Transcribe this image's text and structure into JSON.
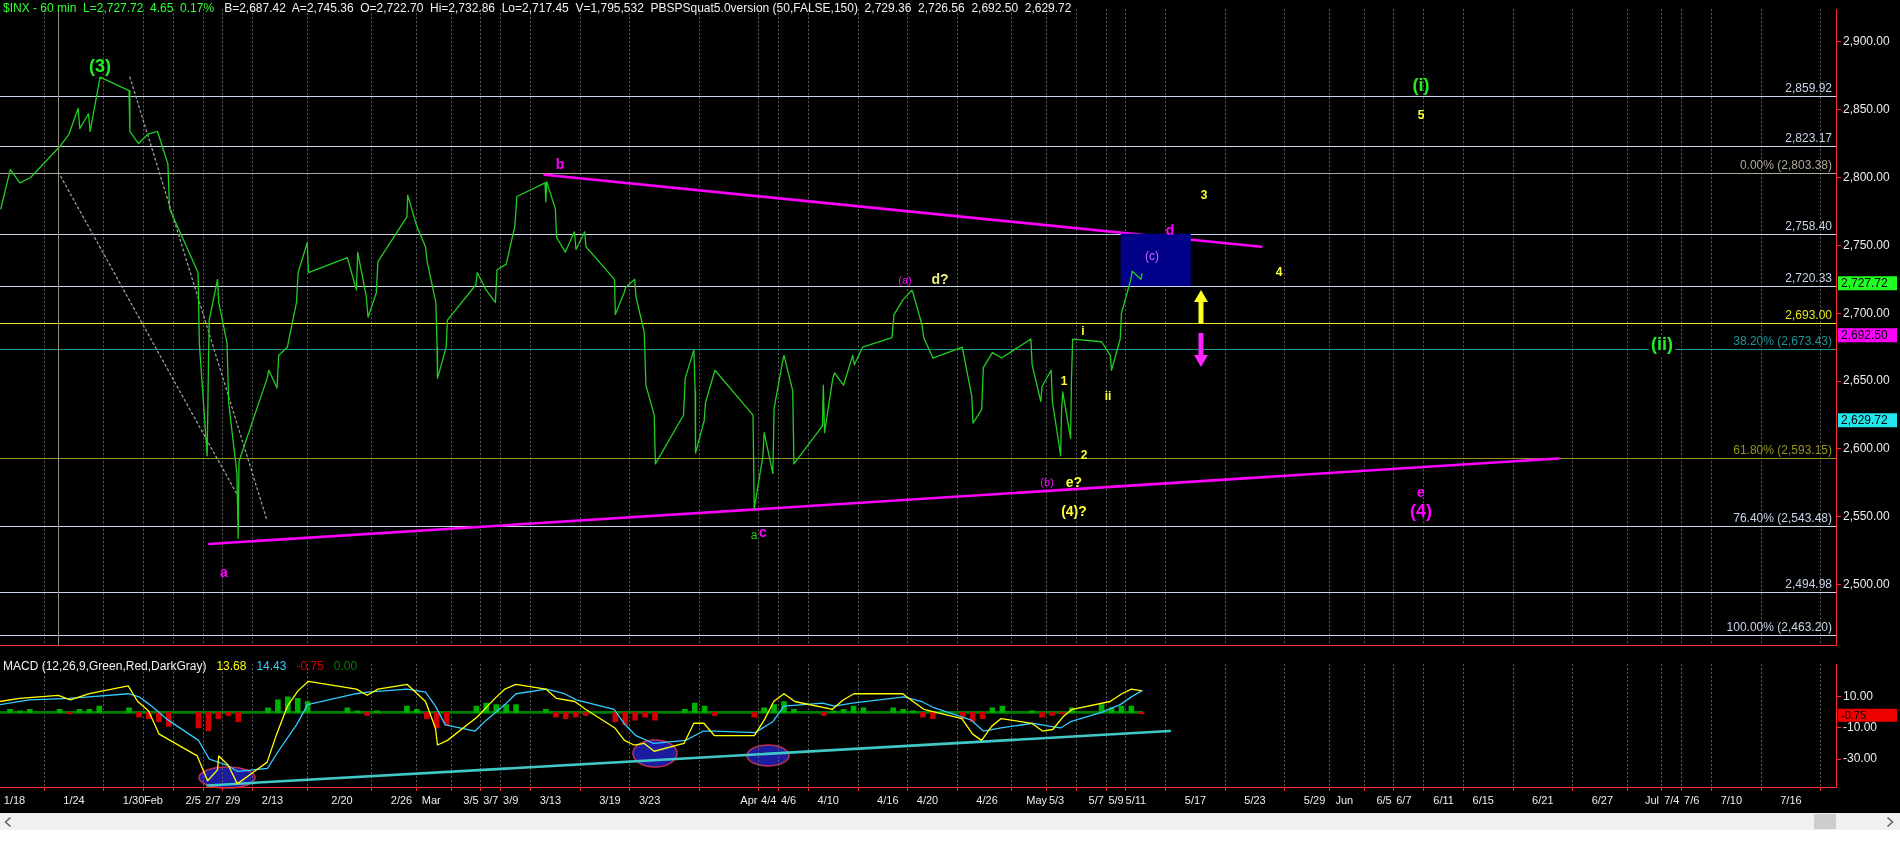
{
  "chart_data": [
    {
      "type": "line",
      "title": "$INX - 60 min  L=2,727.72  4.65  0.17%",
      "subtitle": "B=2,687.42  A=2,745.36  O=2,722.70  Hi=2,732.86  Lo=2,717.45  V=1,795,532  PBSPSquat5.0version (50,FALSE,150)  2,729.36  2,726.56  2,692.50  2,629.72",
      "xlim": [
        "--01-16T13:00",
        "--07-20T13:00"
      ],
      "xticks": [
        {
          "value": "--01-18",
          "label": null
        },
        {
          "value": "--01-24",
          "label": null
        },
        {
          "value": "--01-30",
          "label": null
        },
        {
          "value": "--02-01",
          "label": null
        },
        {
          "value": "--02-05",
          "label": null
        },
        {
          "value": "--02-07",
          "label": null
        },
        {
          "value": "--02-09",
          "label": null
        },
        {
          "value": "--02-13",
          "label": null
        },
        {
          "value": "--02-20",
          "label": null
        },
        {
          "value": "--02-26",
          "label": null
        },
        {
          "value": "--03-01",
          "label": null
        },
        {
          "value": "--03-05",
          "label": null
        },
        {
          "value": "--03-07",
          "label": null
        },
        {
          "value": "--03-09",
          "label": null
        },
        {
          "value": "--03-13",
          "label": null
        },
        {
          "value": "--03-19",
          "label": null
        },
        {
          "value": "--03-23",
          "label": null
        },
        {
          "value": "--04-02",
          "label": null
        },
        {
          "value": "--04-04",
          "label": null
        },
        {
          "value": "--04-06",
          "label": null
        },
        {
          "value": "--04-10",
          "label": null
        },
        {
          "value": "--04-16",
          "label": null
        },
        {
          "value": "--04-20",
          "label": null
        },
        {
          "value": "--04-26",
          "label": null
        },
        {
          "value": "--05-01",
          "label": null
        },
        {
          "value": "--05-03",
          "label": null
        },
        {
          "value": "--05-07",
          "label": null
        },
        {
          "value": "--05-09",
          "label": null
        },
        {
          "value": "--05-11",
          "label": null
        },
        {
          "value": "--05-17",
          "label": null
        },
        {
          "value": "--05-23",
          "label": null
        },
        {
          "value": "--05-29",
          "label": null
        },
        {
          "value": "--06-01",
          "label": null
        },
        {
          "value": "--06-05",
          "label": null
        },
        {
          "value": "--06-07",
          "label": null
        },
        {
          "value": "--06-11",
          "label": null
        },
        {
          "value": "--06-15",
          "label": null
        },
        {
          "value": "--06-21",
          "label": null
        },
        {
          "value": "--06-27",
          "label": null
        },
        {
          "value": "--07-02",
          "label": null
        },
        {
          "value": "--07-04",
          "label": null
        },
        {
          "value": "--07-06",
          "label": null
        },
        {
          "value": "--07-10",
          "label": null
        },
        {
          "value": "--07-16",
          "label": null
        }
      ],
      "ylim": [
        2455,
        2924
      ],
      "yticks": [
        {
          "value": 2500,
          "label": "2,500.00"
        },
        {
          "value": 2550,
          "label": "2,550.00"
        },
        {
          "value": 2600,
          "label": "2,600.00"
        },
        {
          "value": 2650,
          "label": "2,650.00"
        },
        {
          "value": 2700,
          "label": "2,700.00"
        },
        {
          "value": 2750,
          "label": "2,750.00"
        },
        {
          "value": 2800,
          "label": "2,800.00"
        },
        {
          "value": 2850,
          "label": "2,850.00"
        },
        {
          "value": 2900,
          "label": "2,900.00"
        }
      ],
      "tick_labels": "y",
      "grid": "x",
      "marker": "none",
      "series": [
        {
          "color": "#22cc22",
          "x": [
            "--01-16T15:00",
            "--01-17T14:00",
            "--01-18T13:00",
            "--01-19T15:00",
            "--01-22T14:00",
            "--01-23T12:00",
            "--01-24T10:00",
            "--01-24T14:00",
            "--01-25T11:00",
            "--01-25T15:00",
            "--01-26T15:00",
            "--01-29T13:00",
            "--01-29T15:00",
            "--01-30T12:00",
            "--01-31T11:00",
            "--02-01T10:00",
            "--02-01T14:00",
            "--02-02T11:00",
            "--02-02T15:00",
            "--02-05T12:00",
            "--02-05T15:00",
            "--02-06T10:00",
            "--02-06T13:00",
            "--02-06T15:00",
            "--02-07T11:00",
            "--02-07T14:00",
            "--02-08T10:00",
            "--02-08T14:00",
            "--02-09T10:00",
            "--02-09T13:00",
            "--02-09T15:00",
            "--02-12T11:00",
            "--02-12T15:00",
            "--02-13T11:00",
            "--02-13T15:00",
            "--02-14T12:00",
            "--02-15T10:00",
            "--02-15T14:00",
            "--02-16T12:00",
            "--02-16T15:00",
            "--02-20T13:00",
            "--02-21T11:00",
            "--02-21T14:00",
            "--02-22T11:00",
            "--02-22T15:00",
            "--02-23T11:00",
            "--02-23T15:00",
            "--02-26T13:00",
            "--02-26T15:00",
            "--02-27T13:00",
            "--02-28T10:00",
            "--02-28T14:00",
            "--03-01T11:00",
            "--03-01T14:00",
            "--03-01T15:00",
            "--03-02T12:00",
            "--03-02T15:00",
            "--03-05T12:00",
            "--03-05T15:00",
            "--03-06T13:00",
            "--03-07T11:00",
            "--03-07T15:00",
            "--03-08T13:00",
            "--03-09T10:00",
            "--03-09T15:00",
            "--03-12T11:00",
            "--03-12T13:00",
            "--03-12T15:00",
            "--03-13T12:00",
            "--03-13T15:00",
            "--03-14T12:00",
            "--03-15T10:00",
            "--03-15T14:00",
            "--03-16T11:00",
            "--03-16T14:00",
            "--03-19T11:00",
            "--03-19T13:00",
            "--03-20T10:00",
            "--03-20T14:00",
            "--03-21T12:00",
            "--03-21T15:00",
            "--03-22T11:00",
            "--03-22T15:00",
            "--03-23T11:00",
            "--03-23T14:00",
            "--03-26T10:00",
            "--03-26T14:00",
            "--03-27T11:00",
            "--03-27T14:00",
            "--03-27T15:00",
            "--03-28T12:00",
            "--03-28T15:00",
            "--03-29T14:00",
            "--04-02T10:00",
            "--04-02T13:00",
            "--04-03T10:00",
            "--04-03T13:00",
            "--04-04T10:00",
            "--04-04T13:00",
            "--04-05T10:00",
            "--04-05T13:00",
            "--04-06T10:00",
            "--04-06T13:00",
            "--04-09T10:00",
            "--04-09T12:00",
            "--04-09T15:00",
            "--04-10T11:00",
            "--04-10T15:00",
            "--04-11T13:00",
            "--04-12T11:00",
            "--04-12T15:00",
            "--04-13T11:00",
            "--04-16T10:00",
            "--04-16T15:00",
            "--04-17T13:00",
            "--04-18T10:00",
            "--04-18T13:00",
            "--04-19T11:00",
            "--04-19T15:00",
            "--04-20T13:00",
            "--04-23T12:00",
            "--04-24T11:00",
            "--04-24T14:00",
            "--04-25T11:00",
            "--04-25T15:00",
            "--04-26T13:00",
            "--04-27T11:00",
            "--04-30T10:00",
            "--04-30T13:00",
            "--05-01T10:00",
            "--05-01T13:00",
            "--05-02T11:00",
            "--05-02T14:00",
            "--05-03T10:00",
            "--05-03T12:00",
            "--05-03T15:00",
            "--05-04T10:00",
            "--05-04T12:00",
            "--05-04T15:00",
            "--05-07T13:00",
            "--05-08T10:00",
            "--05-08T13:00",
            "--05-09T10:00",
            "--05-09T13:00",
            "--05-10T10:00",
            "--05-10T13:00",
            "--05-10T15:00",
            "--05-11T12:00",
            "--05-11T15:00"
          ],
          "values": [
            2777,
            2806,
            2796,
            2800,
            2823,
            2832,
            2851,
            2836,
            2847,
            2834,
            2874,
            2864,
            2834,
            2825,
            2832,
            2834,
            2830,
            2810,
            2777,
            2730,
            2678,
            2595,
            2660,
            2695,
            2725,
            2708,
            2678,
            2634,
            2582,
            2534,
            2591,
            2652,
            2658,
            2645,
            2669,
            2675,
            2708,
            2730,
            2752,
            2730,
            2741,
            2717,
            2745,
            2712,
            2697,
            2715,
            2738,
            2771,
            2787,
            2764,
            2749,
            2738,
            2708,
            2675,
            2652,
            2675,
            2695,
            2721,
            2730,
            2717,
            2708,
            2732,
            2736,
            2764,
            2786,
            2796,
            2782,
            2797,
            2777,
            2756,
            2745,
            2760,
            2747,
            2760,
            2749,
            2725,
            2699,
            2715,
            2719,
            2725,
            2712,
            2686,
            2647,
            2625,
            2589,
            2625,
            2652,
            2673,
            2643,
            2597,
            2621,
            2634,
            2658,
            2625,
            2556,
            2595,
            2612,
            2582,
            2630,
            2665,
            2669,
            2643,
            2589,
            2617,
            2647,
            2612,
            2652,
            2656,
            2647,
            2669,
            2662,
            2675,
            2682,
            2699,
            2710,
            2717,
            2715,
            2691,
            2682,
            2667,
            2675,
            2639,
            2619,
            2629,
            2660,
            2671,
            2667,
            2681,
            2662,
            2635,
            2646,
            2658,
            2635,
            2595,
            2627,
            2642,
            2608,
            2650,
            2681,
            2679,
            2669,
            2658,
            2681,
            2700,
            2723,
            2727,
            2731,
            2725,
            2729
          ]
        },
        {
          "type": "bar",
          "color": "#000088",
          "x": [
            "--05-13T00:00"
          ],
          "base": [
            2720.33
          ],
          "values": [
            38.07
          ]
        },
        {
          "color": "#ff00ff",
          "x": [
            "--03-12T10:00",
            "--05-23T15:00"
          ],
          "values": [
            2802,
            2749
          ]
        },
        {
          "color": "#ff00ff",
          "x": [
            "--02-06T15:00",
            "--06-22T14:00"
          ],
          "values": [
            2530,
            2593
          ]
        },
        {
          "color": "#9a9a9a",
          "line_style": "dotted",
          "x": [
            "--01-22T10:00",
            "--02-09T13:00"
          ],
          "values": [
            2804,
            2565
          ]
        },
        {
          "color": "#9a9a9a",
          "line_style": "dotted",
          "x": [
            "--01-29T15:00",
            "--02-12T11:00"
          ],
          "values": [
            2874,
            2547
          ]
        }
      ],
      "ref_lines": [
        {
          "axis": "y",
          "value": 2859.92,
          "label": "2,859.92",
          "color": "#c8d4e8"
        },
        {
          "axis": "y",
          "value": 2823.17,
          "label": "2,823.17",
          "color": "#c8d4e8"
        },
        {
          "axis": "y",
          "value": 2803.38,
          "label": "0.00% (2,803.38)",
          "color": "#b0a898"
        },
        {
          "axis": "y",
          "value": 2758.4,
          "label": "2,758.40",
          "color": "#c8d4e8"
        },
        {
          "axis": "y",
          "value": 2720.33,
          "label": "2,720.33",
          "color": "#c8d4e8"
        },
        {
          "axis": "y",
          "value": 2693,
          "label": "2,693.00",
          "color": "#e6e620"
        },
        {
          "axis": "y",
          "value": 2673.43,
          "label": "38.20% (2,673.43)",
          "color": "#1f9494"
        },
        {
          "axis": "y",
          "value": 2593.15,
          "label": "61.80% (2,593.15)",
          "color": "#94941f"
        },
        {
          "axis": "y",
          "value": 2543.48,
          "label": "76.40% (2,543.48)",
          "color": "#c8d4e8"
        },
        {
          "axis": "y",
          "value": 2494.98,
          "label": "2,494.98",
          "color": "#c8d4e8"
        },
        {
          "axis": "y",
          "value": 2463.2,
          "label": "100.00% (2,463.20)",
          "color": "#c8d4e8"
        },
        {
          "axis": "x",
          "value": "--01-22T10:00",
          "color": "#968a78"
        }
      ],
      "annotations": [
        "(3)",
        "a",
        "b",
        "a",
        "c",
        "(a)",
        "d?",
        "(b)",
        "e?",
        "(4)?",
        "1",
        "2",
        "i",
        "ii",
        "(c)",
        "d",
        "3",
        "4",
        "(i)",
        "5",
        "e",
        "(4)",
        "(ii)",
        "2,727.72",
        "2,692.50",
        "2,629.72"
      ]
    },
    {
      "type": "line",
      "title": "MACD (12,26,9,Green,Red,DarkGray)",
      "legend": "top left",
      "xlim": [
        "--01-16T13:00",
        "--07-20T13:00"
      ],
      "xticks": [
        {
          "value": "--01-18",
          "label": "1/18"
        },
        {
          "value": "--01-24",
          "label": "1/24"
        },
        {
          "value": "--01-30",
          "label": "1/30"
        },
        {
          "value": "--02-01",
          "label": "Feb"
        },
        {
          "value": "--02-05",
          "label": "2/5"
        },
        {
          "value": "--02-07",
          "label": "2/7"
        },
        {
          "value": "--02-09",
          "label": "2/9"
        },
        {
          "value": "--02-13",
          "label": "2/13"
        },
        {
          "value": "--02-20",
          "label": "2/20"
        },
        {
          "value": "--02-26",
          "label": "2/26"
        },
        {
          "value": "--03-01",
          "label": "Mar"
        },
        {
          "value": "--03-05",
          "label": "3/5"
        },
        {
          "value": "--03-07",
          "label": "3/7"
        },
        {
          "value": "--03-09",
          "label": "3/9"
        },
        {
          "value": "--03-13",
          "label": "3/13"
        },
        {
          "value": "--03-19",
          "label": "3/19"
        },
        {
          "value": "--03-23",
          "label": "3/23"
        },
        {
          "value": "--04-02",
          "label": "Apr"
        },
        {
          "value": "--04-04",
          "label": "4/4"
        },
        {
          "value": "--04-06",
          "label": "4/6"
        },
        {
          "value": "--04-10",
          "label": "4/10"
        },
        {
          "value": "--04-16",
          "label": "4/16"
        },
        {
          "value": "--04-20",
          "label": "4/20"
        },
        {
          "value": "--04-26",
          "label": "4/26"
        },
        {
          "value": "--05-01",
          "label": "May"
        },
        {
          "value": "--05-03",
          "label": "5/3"
        },
        {
          "value": "--05-07",
          "label": "5/7"
        },
        {
          "value": "--05-09",
          "label": "5/9"
        },
        {
          "value": "--05-11",
          "label": "5/11"
        },
        {
          "value": "--05-17",
          "label": "5/17"
        },
        {
          "value": "--05-23",
          "label": "5/23"
        },
        {
          "value": "--05-29",
          "label": "5/29"
        },
        {
          "value": "--06-01",
          "label": "Jun"
        },
        {
          "value": "--06-05",
          "label": "6/5"
        },
        {
          "value": "--06-07",
          "label": "6/7"
        },
        {
          "value": "--06-11",
          "label": "6/11"
        },
        {
          "value": "--06-15",
          "label": "6/15"
        },
        {
          "value": "--06-21",
          "label": "6/21"
        },
        {
          "value": "--06-27",
          "label": "6/27"
        },
        {
          "value": "--07-02",
          "label": "Jul"
        },
        {
          "value": "--07-04",
          "label": "7/4"
        },
        {
          "value": "--07-06",
          "label": "7/6"
        },
        {
          "value": "--07-10",
          "label": "7/10"
        },
        {
          "value": "--07-16",
          "label": "7/16"
        }
      ],
      "ylim": [
        -48,
        31
      ],
      "yticks": [
        {
          "value": 10,
          "label": "10.00"
        },
        {
          "value": -10,
          "label": "-10.00"
        },
        {
          "value": -30,
          "label": "-30.00"
        }
      ],
      "grid": "x",
      "marker": "none",
      "series": [
        {
          "name": "13.68",
          "color": "#ffff00",
          "x": [
            "--01-16T13:00",
            "--01-18T12:00",
            "--01-22T10:00",
            "--01-23T15:00",
            "--01-25T13:00",
            "--01-29T11:00",
            "--01-30T10:00",
            "--01-31T12:00",
            "--02-01T14:00",
            "--02-05T10:00",
            "--02-06T11:00",
            "--02-07T11:00",
            "--02-07T14:00",
            "--02-08T13:00",
            "--02-09T11:00",
            "--02-12T11:00",
            "--02-13T10:00",
            "--02-14T12:00",
            "--02-15T14:00",
            "--02-16T15:00",
            "--02-21T11:00",
            "--02-22T13:00",
            "--02-23T15:00",
            "--02-26T14:00",
            "--02-28T10:00",
            "--03-01T10:00",
            "--03-01T15:00",
            "--03-02T15:00",
            "--03-05T15:00",
            "--03-07T10:00",
            "--03-08T10:00",
            "--03-09T12:00",
            "--03-12T13:00",
            "--03-13T15:00",
            "--03-15T11:00",
            "--03-16T13:00",
            "--03-19T12:00",
            "--03-20T11:00",
            "--03-21T10:00",
            "--03-22T11:00",
            "--03-23T11:00",
            "--03-26T11:00",
            "--03-27T11:00",
            "--03-28T11:00",
            "--03-29T13:00",
            "--04-02T13:00",
            "--04-03T13:00",
            "--04-04T12:00",
            "--04-05T13:00",
            "--04-06T15:00",
            "--04-10T10:00",
            "--04-11T12:00",
            "--04-12T14:00",
            "--04-16T10:00",
            "--04-17T12:00",
            "--04-18T13:00",
            "--04-19T15:00",
            "--04-23T11:00",
            "--04-24T13:00",
            "--04-25T11:00",
            "--04-26T11:00",
            "--04-27T10:00",
            "--04-30T12:00",
            "--05-01T14:00",
            "--05-02T15:00",
            "--05-03T15:00",
            "--05-04T14:00",
            "--05-08T10:00",
            "--05-08T15:00",
            "--05-09T14:00",
            "--05-10T13:00",
            "--05-11T12:00"
          ],
          "values": [
            7,
            9,
            11,
            8,
            12,
            17,
            7,
            1,
            -14,
            -28,
            -44,
            -37,
            -28,
            -34,
            -46,
            -32,
            -14,
            4,
            14,
            20,
            15,
            11,
            15,
            18,
            7,
            -10,
            -21,
            -18,
            -3,
            9,
            15,
            18,
            15,
            9,
            7,
            2,
            -10,
            -18,
            -21,
            -20,
            -25,
            -20,
            -7,
            -7,
            -15,
            -15,
            -5,
            7,
            12,
            7,
            2,
            8,
            12,
            12,
            12,
            7,
            2,
            -4,
            -14,
            -18,
            -9,
            -4,
            -7,
            -12,
            -11,
            -3,
            2,
            7,
            8,
            12,
            15,
            14
          ]
        },
        {
          "name": "14.43",
          "color": "#33ccff",
          "x": [
            "--01-16T13:00",
            "--01-19T12:00",
            "--01-23T12:00",
            "--01-25T13:00",
            "--01-29T11:00",
            "--01-30T13:00",
            "--01-31T15:00",
            "--02-02T12:00",
            "--02-05T13:00",
            "--02-06T15:00",
            "--02-08T10:00",
            "--02-09T12:00",
            "--02-12T12:00",
            "--02-13T14:00",
            "--02-15T10:00",
            "--02-16T13:00",
            "--02-21T10:00",
            "--02-22T15:00",
            "--02-26T13:00",
            "--02-28T10:00",
            "--03-01T10:00",
            "--03-02T10:00",
            "--03-05T10:00",
            "--03-06T13:00",
            "--03-08T10:00",
            "--03-09T13:00",
            "--03-12T15:00",
            "--03-14T10:00",
            "--03-15T15:00",
            "--03-19T10:00",
            "--03-20T13:00",
            "--03-21T15:00",
            "--03-23T10:00",
            "--03-26T15:00",
            "--03-28T10:00",
            "--03-29T15:00",
            "--04-02T15:00",
            "--04-04T10:00",
            "--04-05T13:00",
            "--04-09T10:00",
            "--04-10T15:00",
            "--04-12T10:00",
            "--04-16T10:00",
            "--04-17T15:00",
            "--04-19T10:00",
            "--04-20T15:00",
            "--04-24T10:00",
            "--04-25T15:00",
            "--04-27T10:00",
            "--04-30T15:00",
            "--05-02T10:00",
            "--05-03T10:00",
            "--05-04T10:00",
            "--05-07T13:00",
            "--05-09T10:00",
            "--05-10T13:00",
            "--05-11T15:00"
          ],
          "values": [
            5,
            8,
            9,
            10,
            12,
            10,
            5,
            -5,
            -18,
            -30,
            -34,
            -38,
            -36,
            -25,
            -8,
            5,
            12,
            13,
            15,
            13,
            4,
            -8,
            -12,
            -5,
            5,
            12,
            15,
            12,
            8,
            2,
            -8,
            -15,
            -20,
            -18,
            -12,
            -12,
            -13,
            -6,
            4,
            6,
            4,
            6,
            9,
            10,
            7,
            3,
            -5,
            -12,
            -10,
            -7,
            -9,
            -10,
            -6,
            0,
            5,
            10,
            14
          ]
        },
        {
          "name": "-0.75",
          "type": "bar",
          "color": "#d00000",
          "x": [
            "--01-17T13:00",
            "--01-18T13:00",
            "--01-19T13:00",
            "--01-22T13:00",
            "--01-23T13:00",
            "--01-24T13:00",
            "--01-25T13:00",
            "--01-26T13:00",
            "--01-29T13:00",
            "--01-30T13:00",
            "--01-31T13:00",
            "--02-01T13:00",
            "--02-02T13:00",
            "--02-05T13:00",
            "--02-06T13:00",
            "--02-07T13:00",
            "--02-08T13:00",
            "--02-09T13:00",
            "--02-12T13:00",
            "--02-13T13:00",
            "--02-14T13:00",
            "--02-15T13:00",
            "--02-16T13:00",
            "--02-20T13:00",
            "--02-21T13:00",
            "--02-22T13:00",
            "--02-23T13:00",
            "--02-26T13:00",
            "--02-27T13:00",
            "--02-28T13:00",
            "--03-01T13:00",
            "--03-02T13:00",
            "--03-05T13:00",
            "--03-06T13:00",
            "--03-07T13:00",
            "--03-08T13:00",
            "--03-09T13:00",
            "--03-12T13:00",
            "--03-13T13:00",
            "--03-14T13:00",
            "--03-15T13:00",
            "--03-16T13:00",
            "--03-19T13:00",
            "--03-20T13:00",
            "--03-21T13:00",
            "--03-22T13:00",
            "--03-23T13:00",
            "--03-26T13:00",
            "--03-27T13:00",
            "--03-28T13:00",
            "--03-29T13:00",
            "--04-02T13:00",
            "--04-03T13:00",
            "--04-04T13:00",
            "--04-05T13:00",
            "--04-06T13:00",
            "--04-09T13:00",
            "--04-10T13:00",
            "--04-11T13:00",
            "--04-12T13:00",
            "--04-13T13:00",
            "--04-16T13:00",
            "--04-17T13:00",
            "--04-18T13:00",
            "--04-19T13:00",
            "--04-20T13:00",
            "--04-23T13:00",
            "--04-24T13:00",
            "--04-25T13:00",
            "--04-26T13:00",
            "--04-27T13:00",
            "--04-30T13:00",
            "--05-01T13:00",
            "--05-02T13:00",
            "--05-03T13:00",
            "--05-04T13:00",
            "--05-07T13:00",
            "--05-08T13:00",
            "--05-09T13:00",
            "--05-10T13:00",
            "--05-11T13:00"
          ],
          "values": [
            2,
            1,
            2,
            2,
            -1,
            2,
            2,
            4,
            3,
            -3,
            -4,
            -6,
            -9,
            -10,
            -12,
            -4,
            -2,
            -6,
            3,
            8,
            10,
            9,
            7,
            3,
            1,
            -2,
            1,
            4,
            2,
            -4,
            -10,
            -8,
            4,
            6,
            5,
            5,
            5,
            2,
            -3,
            -4,
            -3,
            -2,
            -6,
            -8,
            -5,
            -3,
            -5,
            2,
            6,
            4,
            -2,
            -3,
            3,
            5,
            7,
            2,
            -2,
            1,
            2,
            4,
            3,
            3,
            2,
            1,
            -3,
            -4,
            -4,
            -6,
            -4,
            3,
            4,
            1,
            -3,
            -2,
            -1,
            3,
            5,
            3,
            4,
            4,
            -1
          ],
          "colors": [
            "#00b000",
            "#00b000",
            "#00b000",
            "#00b000",
            "#d00000",
            "#00b000",
            "#00b000",
            "#00b000",
            "#00b000",
            "#d00000",
            "#d00000",
            "#d00000",
            "#d00000",
            "#d00000",
            "#d00000",
            "#d00000",
            "#d00000",
            "#d00000",
            "#00b000",
            "#00b000",
            "#00b000",
            "#00b000",
            "#00b000",
            "#00b000",
            "#00b000",
            "#d00000",
            "#00b000",
            "#00b000",
            "#00b000",
            "#d00000",
            "#d00000",
            "#d00000",
            "#00b000",
            "#00b000",
            "#00b000",
            "#00b000",
            "#00b000",
            "#00b000",
            "#d00000",
            "#d00000",
            "#d00000",
            "#d00000",
            "#d00000",
            "#d00000",
            "#d00000",
            "#d00000",
            "#d00000",
            "#00b000",
            "#00b000",
            "#00b000",
            "#d00000",
            "#d00000",
            "#00b000",
            "#00b000",
            "#00b000",
            "#00b000",
            "#d00000",
            "#00b000",
            "#00b000",
            "#00b000",
            "#00b000",
            "#00b000",
            "#00b000",
            "#00b000",
            "#d00000",
            "#d00000",
            "#d00000",
            "#d00000",
            "#d00000",
            "#00b000",
            "#00b000",
            "#00b000",
            "#d00000",
            "#d00000",
            "#d00000",
            "#00b000",
            "#00b000",
            "#00b000",
            "#00b000",
            "#00b000",
            "#d00000"
          ]
        },
        {
          "name": "0.00",
          "color": "#008000",
          "x": [
            "--01-16T13:00",
            "--05-11T15:00"
          ],
          "values": [
            0,
            0
          ]
        },
        {
          "color": "#40c8c8",
          "x": [
            "--02-06T11:00",
            "--05-14T10:00"
          ],
          "values": [
            -47,
            -12
          ]
        }
      ],
      "annotations": [
        "-0.75"
      ]
    }
  ]
}
